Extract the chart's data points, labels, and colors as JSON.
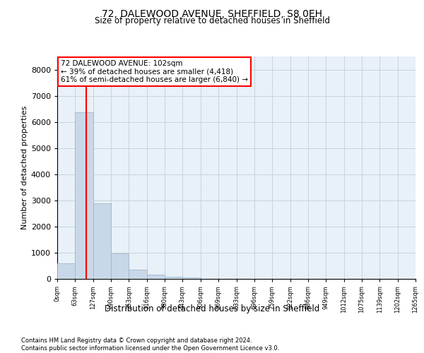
{
  "title1": "72, DALEWOOD AVENUE, SHEFFIELD, S8 0EH",
  "title2": "Size of property relative to detached houses in Sheffield",
  "xlabel": "Distribution of detached houses by size in Sheffield",
  "ylabel": "Number of detached properties",
  "bin_labels": [
    "0sqm",
    "63sqm",
    "127sqm",
    "190sqm",
    "253sqm",
    "316sqm",
    "380sqm",
    "443sqm",
    "506sqm",
    "569sqm",
    "633sqm",
    "696sqm",
    "759sqm",
    "822sqm",
    "886sqm",
    "949sqm",
    "1012sqm",
    "1075sqm",
    "1139sqm",
    "1202sqm",
    "1265sqm"
  ],
  "bar_heights": [
    600,
    6380,
    2900,
    960,
    350,
    150,
    80,
    50,
    0,
    0,
    0,
    0,
    0,
    0,
    0,
    0,
    0,
    0,
    0,
    0
  ],
  "bar_color": "#c8d8e8",
  "bar_edge_color": "#a0b8cc",
  "property_sqm": 102,
  "property_line_color": "red",
  "annotation_line1": "72 DALEWOOD AVENUE: 102sqm",
  "annotation_line2": "← 39% of detached houses are smaller (4,418)",
  "annotation_line3": "61% of semi-detached houses are larger (6,840) →",
  "annotation_box_color": "white",
  "annotation_box_edge": "red",
  "ylim": [
    0,
    8500
  ],
  "yticks": [
    0,
    1000,
    2000,
    3000,
    4000,
    5000,
    6000,
    7000,
    8000
  ],
  "grid_color": "#c8d4dc",
  "background_color": "#e8f0f8",
  "footer_line1": "Contains HM Land Registry data © Crown copyright and database right 2024.",
  "footer_line2": "Contains public sector information licensed under the Open Government Licence v3.0.",
  "bin_width": 63
}
